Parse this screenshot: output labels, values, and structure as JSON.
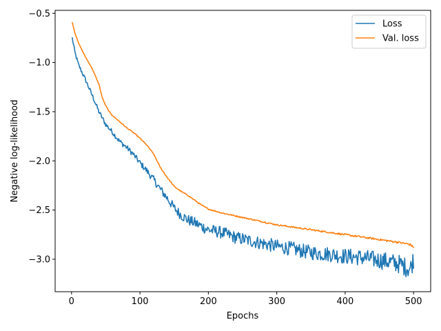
{
  "chart_data": {
    "type": "line",
    "title": "",
    "xlabel": "Epochs",
    "ylabel": "Negative log-likelihood",
    "xlim": [
      -24,
      525
    ],
    "ylim": [
      -3.33,
      -0.47
    ],
    "x_ticks": [
      0,
      100,
      200,
      300,
      400,
      500
    ],
    "y_ticks": [
      -3.0,
      -2.5,
      -2.0,
      -1.5,
      -1.0,
      -0.5
    ],
    "x_tick_labels": [
      "0",
      "100",
      "200",
      "300",
      "400",
      "500"
    ],
    "y_tick_labels": [
      "−3.0",
      "−2.5",
      "−2.0",
      "−1.5",
      "−1.0",
      "−0.5"
    ],
    "grid": false,
    "legend_position": "top-right",
    "series": [
      {
        "name": "Loss",
        "color": "#1f77b4",
        "keypoints": [
          [
            1,
            -0.75
          ],
          [
            5,
            -0.9
          ],
          [
            10,
            -1.02
          ],
          [
            20,
            -1.17
          ],
          [
            30,
            -1.33
          ],
          [
            40,
            -1.5
          ],
          [
            50,
            -1.63
          ],
          [
            60,
            -1.71
          ],
          [
            70,
            -1.8
          ],
          [
            80,
            -1.86
          ],
          [
            90,
            -1.93
          ],
          [
            100,
            -2.02
          ],
          [
            110,
            -2.1
          ],
          [
            120,
            -2.19
          ],
          [
            130,
            -2.29
          ],
          [
            140,
            -2.38
          ],
          [
            150,
            -2.48
          ],
          [
            160,
            -2.55
          ],
          [
            170,
            -2.6
          ],
          [
            180,
            -2.63
          ],
          [
            200,
            -2.7
          ],
          [
            220,
            -2.73
          ],
          [
            240,
            -2.78
          ],
          [
            260,
            -2.81
          ],
          [
            280,
            -2.84
          ],
          [
            300,
            -2.87
          ],
          [
            320,
            -2.89
          ],
          [
            340,
            -2.92
          ],
          [
            360,
            -2.94
          ],
          [
            380,
            -2.95
          ],
          [
            400,
            -2.97
          ],
          [
            420,
            -2.98
          ],
          [
            440,
            -3.0
          ],
          [
            460,
            -3.02
          ],
          [
            480,
            -3.05
          ],
          [
            495,
            -3.1
          ],
          [
            500,
            -3.0
          ]
        ],
        "noise": [
          [
            0,
            0.02
          ],
          [
            100,
            0.03
          ],
          [
            150,
            0.05
          ],
          [
            200,
            0.06
          ],
          [
            300,
            0.07
          ],
          [
            400,
            0.08
          ],
          [
            500,
            0.1
          ]
        ]
      },
      {
        "name": "Val. loss",
        "color": "#ff7f0e",
        "keypoints": [
          [
            1,
            -0.59
          ],
          [
            5,
            -0.7
          ],
          [
            10,
            -0.8
          ],
          [
            20,
            -0.94
          ],
          [
            30,
            -1.06
          ],
          [
            40,
            -1.22
          ],
          [
            45,
            -1.36
          ],
          [
            50,
            -1.44
          ],
          [
            55,
            -1.5
          ],
          [
            60,
            -1.54
          ],
          [
            70,
            -1.6
          ],
          [
            80,
            -1.66
          ],
          [
            90,
            -1.71
          ],
          [
            100,
            -1.77
          ],
          [
            110,
            -1.84
          ],
          [
            120,
            -1.93
          ],
          [
            130,
            -2.07
          ],
          [
            140,
            -2.17
          ],
          [
            150,
            -2.26
          ],
          [
            160,
            -2.31
          ],
          [
            170,
            -2.35
          ],
          [
            180,
            -2.4
          ],
          [
            190,
            -2.45
          ],
          [
            200,
            -2.49
          ],
          [
            220,
            -2.53
          ],
          [
            240,
            -2.56
          ],
          [
            260,
            -2.59
          ],
          [
            280,
            -2.62
          ],
          [
            300,
            -2.65
          ],
          [
            320,
            -2.67
          ],
          [
            340,
            -2.69
          ],
          [
            360,
            -2.71
          ],
          [
            380,
            -2.73
          ],
          [
            400,
            -2.75
          ],
          [
            420,
            -2.77
          ],
          [
            440,
            -2.79
          ],
          [
            460,
            -2.81
          ],
          [
            480,
            -2.83
          ],
          [
            495,
            -2.85
          ],
          [
            500,
            -2.88
          ]
        ],
        "noise": [
          [
            0,
            0.003
          ],
          [
            200,
            0.006
          ],
          [
            500,
            0.01
          ]
        ]
      }
    ]
  }
}
